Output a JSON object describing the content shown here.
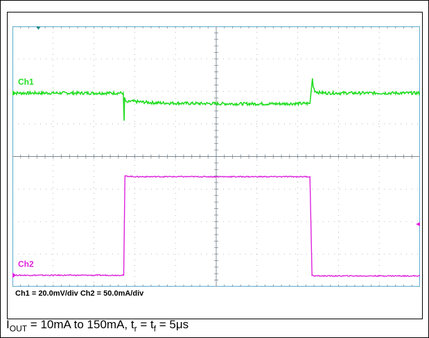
{
  "chart_data": {
    "type": "line",
    "title": "",
    "xlabel": "",
    "ylabel": "",
    "grid": true,
    "divisions": {
      "x": 10,
      "y": 8
    },
    "channel_labels": [
      "Ch1",
      "Ch2"
    ],
    "series": [
      {
        "name": "Ch1",
        "color": "#22dd22",
        "units": "div",
        "x_div": [
          0,
          2.72,
          2.74,
          2.75,
          2.8,
          2.9,
          3.1,
          3.5,
          4.5,
          5.5,
          6.5,
          7.3,
          7.36,
          7.38,
          7.42,
          7.5,
          7.7,
          8.0,
          9.0,
          10.0
        ],
        "y_div": [
          5.95,
          5.95,
          5.1,
          5.78,
          5.65,
          5.7,
          5.68,
          5.65,
          5.63,
          5.62,
          5.62,
          5.63,
          6.4,
          6.15,
          6.02,
          5.97,
          5.95,
          5.95,
          5.95,
          5.95
        ]
      },
      {
        "name": "Ch2",
        "color": "#dd22dd",
        "units": "div",
        "x_div": [
          0,
          2.73,
          2.76,
          3.0,
          5.0,
          7.3,
          7.35,
          7.4,
          10.0
        ],
        "y_div": [
          0.35,
          0.35,
          3.4,
          3.38,
          3.38,
          3.38,
          0.35,
          0.33,
          0.33
        ]
      }
    ],
    "scale_text": "Ch1 = 20.0mV/div  Ch2 = 50.0mA/div",
    "condition": {
      "i_symbol": "I",
      "i_sub": "OUT",
      "i_text": " = 10mA to 150mA, t",
      "r_sub": "r",
      "eq_text": " = t",
      "f_sub": "f",
      "end_text": " = 5μs"
    }
  }
}
